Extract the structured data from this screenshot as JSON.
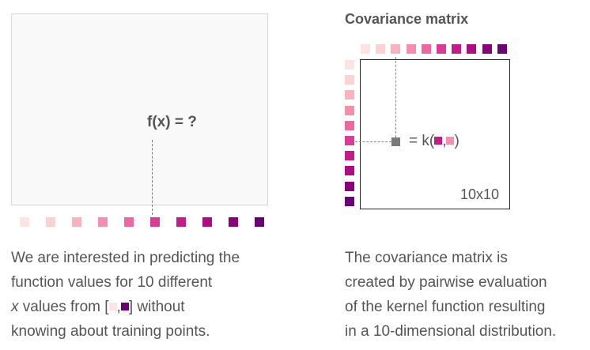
{
  "palette": [
    "#fde3e1",
    "#fcd2d3",
    "#f9b3be",
    "#f58eae",
    "#ef67a0",
    "#db3b98",
    "#c51b8a",
    "#ad0c82",
    "#8a017c",
    "#6c0175"
  ],
  "left": {
    "fx_label": "f(x) = ?",
    "caption": {
      "line1": "We are interested in predicting the",
      "line2": "function values for 10 different",
      "line3_var": "x",
      "line3_pre": " values from [",
      "line3_mid": ",",
      "line3_post": "] without",
      "line4": "knowing about training points."
    }
  },
  "right": {
    "title": "Covariance matrix",
    "matrix_size": "10x10",
    "kernel_prefix": "= k(",
    "kernel_sep": ",",
    "kernel_suffix": ")",
    "caption": {
      "line1": "The covariance matrix is",
      "line2": "created by pairwise evaluation",
      "line3": "of the kernel function resulting",
      "line4": "in a 10-dimensional distribution."
    }
  }
}
